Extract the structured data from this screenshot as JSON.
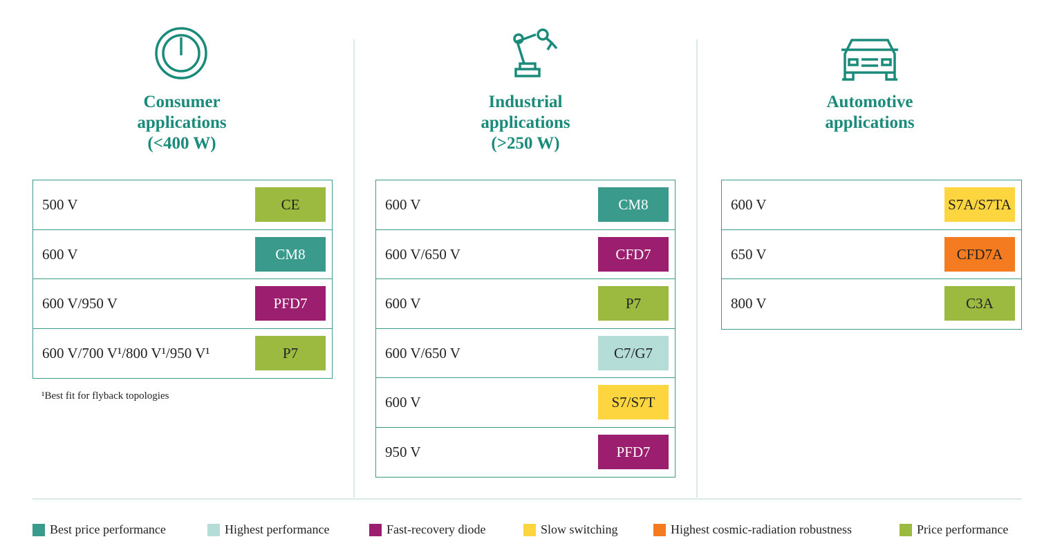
{
  "columns": [
    {
      "title": [
        "Consumer",
        "applications",
        "(<400 W)"
      ],
      "rows": [
        {
          "voltage": "500 V",
          "badge": "CE",
          "color": "#9bba3f"
        },
        {
          "voltage": "600 V",
          "badge": "CM8",
          "color": "#3a9a8c"
        },
        {
          "voltage": "600 V/950 V",
          "badge": "PFD7",
          "color": "#9b1f6e"
        },
        {
          "voltage": "600 V/700 V¹/800 V¹/950 V¹",
          "badge": "P7",
          "color": "#9bba3f"
        }
      ],
      "footnote": "¹Best fit for flyback topologies"
    },
    {
      "title": [
        "Industrial",
        "applications",
        "(>250 W)"
      ],
      "rows": [
        {
          "voltage": "600 V",
          "badge": "CM8",
          "color": "#3a9a8c"
        },
        {
          "voltage": "600 V/650 V",
          "badge": "CFD7",
          "color": "#9b1f6e"
        },
        {
          "voltage": "600 V",
          "badge": "P7",
          "color": "#9bba3f"
        },
        {
          "voltage": "600 V/650 V",
          "badge": "C7/G7",
          "color": "#b5ddd8"
        },
        {
          "voltage": "600 V",
          "badge": "S7/S7T",
          "color": "#fcd53f"
        },
        {
          "voltage": "950 V",
          "badge": "PFD7",
          "color": "#9b1f6e"
        }
      ]
    },
    {
      "title": [
        "Automotive",
        "applications"
      ],
      "rows": [
        {
          "voltage": "600 V",
          "badge": "S7A/S7TA",
          "color": "#fcd53f"
        },
        {
          "voltage": "650 V",
          "badge": "CFD7A",
          "color": "#f47b20"
        },
        {
          "voltage": "800 V",
          "badge": "C3A",
          "color": "#9bba3f"
        }
      ]
    }
  ],
  "legend": [
    {
      "name": "Best price performance",
      "color": "#3a9a8c"
    },
    {
      "name": "Highest performance",
      "color": "#b5ddd8"
    },
    {
      "name": "Fast-recovery diode",
      "color": "#9b1f6e"
    },
    {
      "name": "Slow switching",
      "color": "#fcd53f"
    },
    {
      "name": "Highest cosmic-radiation robustness",
      "color": "#f47b20"
    },
    {
      "name": "Price performance",
      "color": "#9bba3f"
    }
  ]
}
